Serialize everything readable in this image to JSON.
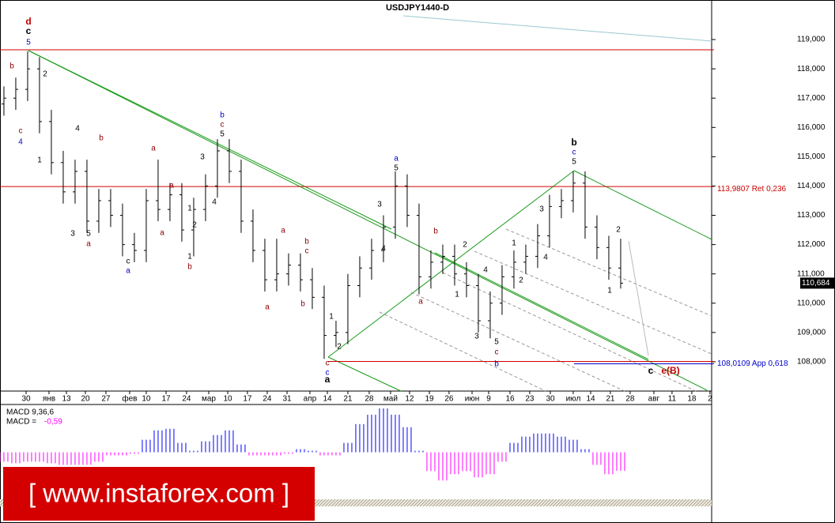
{
  "chart_data": {
    "type": "ohlc",
    "title": "USDJPY1440-D",
    "open": [
      116.8,
      117.0,
      117.3,
      118.0,
      116.2,
      114.8,
      113.8,
      114.5,
      112.8,
      113.5,
      113.0,
      112.0,
      111.8,
      113.5,
      113.2,
      113.7,
      112.5,
      113.2,
      114.0,
      115.2,
      114.5,
      112.8,
      111.8,
      110.8,
      111.0,
      111.3,
      110.8,
      110.2,
      108.9,
      109.0,
      110.6,
      111.2,
      111.8,
      112.6,
      114.0,
      113.0,
      110.9,
      111.4,
      111.6,
      111.0,
      110.6,
      109.4,
      110.0,
      110.9,
      111.4,
      111.6,
      112.3,
      113.3,
      113.5,
      114.1,
      112.6,
      111.9,
      111.2
    ],
    "high": [
      117.4,
      117.7,
      118.6,
      118.4,
      116.6,
      115.2,
      114.9,
      114.9,
      113.9,
      113.9,
      113.4,
      112.4,
      113.9,
      114.9,
      114.1,
      114.1,
      113.6,
      114.4,
      115.6,
      115.6,
      114.9,
      113.2,
      112.2,
      112.2,
      111.7,
      111.7,
      111.2,
      110.6,
      109.4,
      111.0,
      111.6,
      112.2,
      113.0,
      114.5,
      114.4,
      113.4,
      111.8,
      112.0,
      112.0,
      111.4,
      111.0,
      110.4,
      111.3,
      111.8,
      112.0,
      112.7,
      113.7,
      113.9,
      114.5,
      114.5,
      113.0,
      112.3,
      112.2
    ],
    "low": [
      116.4,
      116.6,
      116.9,
      115.8,
      114.4,
      113.4,
      113.4,
      112.4,
      112.4,
      112.6,
      111.6,
      111.4,
      111.4,
      112.8,
      112.8,
      112.1,
      111.6,
      112.8,
      113.6,
      114.1,
      112.4,
      111.4,
      110.4,
      110.4,
      110.6,
      110.4,
      109.8,
      108.1,
      108.5,
      108.6,
      110.2,
      110.8,
      111.4,
      112.2,
      112.6,
      110.3,
      110.5,
      111.0,
      110.6,
      110.2,
      109.0,
      108.8,
      109.6,
      110.5,
      111.0,
      111.2,
      111.9,
      112.9,
      113.1,
      112.2,
      111.5,
      110.8,
      110.5
    ],
    "close": [
      117.0,
      117.3,
      118.0,
      116.2,
      114.8,
      113.8,
      114.5,
      112.8,
      113.5,
      113.0,
      112.0,
      111.8,
      113.5,
      113.2,
      113.7,
      112.5,
      113.2,
      114.0,
      115.2,
      114.5,
      112.8,
      111.8,
      110.8,
      111.0,
      111.3,
      110.8,
      110.2,
      108.9,
      109.0,
      110.6,
      111.2,
      111.8,
      112.6,
      114.0,
      113.0,
      110.9,
      111.4,
      111.6,
      111.0,
      110.6,
      109.4,
      110.0,
      110.9,
      111.4,
      111.6,
      112.3,
      113.3,
      113.5,
      114.1,
      112.6,
      111.9,
      111.2,
      110.684
    ],
    "xlim": [
      -0.33,
      59.67
    ],
    "xticks": [
      {
        "value": 1.87,
        "label": "30"
      },
      {
        "value": 3.8,
        "label": "янв"
      },
      {
        "value": 5.27,
        "label": "13"
      },
      {
        "value": 6.87,
        "label": "20"
      },
      {
        "value": 8.6,
        "label": "27"
      },
      {
        "value": 10.6,
        "label": "фев"
      },
      {
        "value": 12,
        "label": "10"
      },
      {
        "value": 13.67,
        "label": "17"
      },
      {
        "value": 15.4,
        "label": "24"
      },
      {
        "value": 17.27,
        "label": "мар"
      },
      {
        "value": 18.87,
        "label": "10"
      },
      {
        "value": 20.53,
        "label": "17"
      },
      {
        "value": 22.2,
        "label": "24"
      },
      {
        "value": 23.87,
        "label": "31"
      },
      {
        "value": 25.8,
        "label": "апр"
      },
      {
        "value": 27.27,
        "label": "14"
      },
      {
        "value": 29,
        "label": "21"
      },
      {
        "value": 30.8,
        "label": "28"
      },
      {
        "value": 32.6,
        "label": "май"
      },
      {
        "value": 34.2,
        "label": "12"
      },
      {
        "value": 35.87,
        "label": "19"
      },
      {
        "value": 37.53,
        "label": "26"
      },
      {
        "value": 39.47,
        "label": "июн"
      },
      {
        "value": 40.87,
        "label": "9"
      },
      {
        "value": 42.67,
        "label": "16"
      },
      {
        "value": 44.33,
        "label": "23"
      },
      {
        "value": 46.07,
        "label": "30"
      },
      {
        "value": 48,
        "label": "июл"
      },
      {
        "value": 49.47,
        "label": "14"
      },
      {
        "value": 51.13,
        "label": "21"
      },
      {
        "value": 52.8,
        "label": "28"
      },
      {
        "value": 54.8,
        "label": "авг"
      },
      {
        "value": 56.33,
        "label": "11"
      },
      {
        "value": 58,
        "label": "18"
      },
      {
        "value": 59.53,
        "label": "2"
      }
    ],
    "ylim": [
      107.0,
      120.35
    ],
    "yticks": [
      {
        "value": 108,
        "label": "108,000"
      },
      {
        "value": 109,
        "label": "109,000"
      },
      {
        "value": 110,
        "label": "110,000"
      },
      {
        "value": 111,
        "label": "111,000"
      },
      {
        "value": 112,
        "label": "112,000"
      },
      {
        "value": 113,
        "label": "113,000"
      },
      {
        "value": 114,
        "label": "114,000"
      },
      {
        "value": 115,
        "label": "115,000"
      },
      {
        "value": 116,
        "label": "116,000"
      },
      {
        "value": 117,
        "label": "117,000"
      },
      {
        "value": 118,
        "label": "118,000"
      },
      {
        "value": 119,
        "label": "119,000"
      }
    ],
    "last_price": {
      "value": 110.684,
      "label": "110,684"
    },
    "levels": [
      {
        "value": 113.9807,
        "label": "113,9807 Ret 0,236",
        "color": "#cc0000"
      },
      {
        "value": 108.0109,
        "label": "108,0109 App 0,618",
        "color": "#0000cc"
      }
    ],
    "wave_labels": [
      {
        "text": "d",
        "color": "#c00000"
      },
      {
        "text": "c",
        "color": "#000000"
      },
      {
        "text": "5",
        "color": "#0000cc"
      },
      {
        "text": "b",
        "color": "#8b0000"
      },
      {
        "text": "2",
        "color": "#000000"
      },
      {
        "text": "c",
        "color": "#8b0000"
      },
      {
        "text": "4",
        "color": "#0000cc"
      },
      {
        "text": "1",
        "color": "#000000"
      },
      {
        "text": "4",
        "color": "#000000"
      },
      {
        "text": "b",
        "color": "#8b0000"
      },
      {
        "text": "a",
        "color": "#8b0000"
      },
      {
        "text": "3",
        "color": "#000000"
      },
      {
        "text": "5",
        "color": "#000000"
      },
      {
        "text": "a",
        "color": "#8b0000"
      },
      {
        "text": "a",
        "color": "#8b0000"
      },
      {
        "text": "c",
        "color": "#000000"
      },
      {
        "text": "a",
        "color": "#0000cc"
      },
      {
        "text": "1",
        "color": "#000000"
      },
      {
        "text": "2",
        "color": "#000000"
      },
      {
        "text": "1",
        "color": "#000000"
      },
      {
        "text": "b",
        "color": "#8b0000"
      },
      {
        "text": "b",
        "color": "#0000cc"
      },
      {
        "text": "c",
        "color": "#8b0000"
      },
      {
        "text": "5",
        "color": "#000000"
      },
      {
        "text": "3",
        "color": "#000000"
      },
      {
        "text": "4",
        "color": "#000000"
      },
      {
        "text": "a",
        "color": "#8b0000"
      },
      {
        "text": "a",
        "color": "#8b0000"
      },
      {
        "text": "b",
        "color": "#8b0000"
      },
      {
        "text": "c",
        "color": "#8b0000"
      },
      {
        "text": "a",
        "color": "#8b0000"
      },
      {
        "text": "b",
        "color": "#8b0000"
      },
      {
        "text": "1",
        "color": "#000000"
      },
      {
        "text": "2",
        "color": "#000000"
      },
      {
        "text": "c",
        "color": "#8b0000"
      },
      {
        "text": "c",
        "color": "#0000cc"
      },
      {
        "text": "a",
        "color": "#000000"
      },
      {
        "text": "a",
        "color": "#0000cc"
      },
      {
        "text": "5",
        "color": "#000000"
      },
      {
        "text": "3",
        "color": "#000000"
      },
      {
        "text": "4",
        "color": "#000000"
      },
      {
        "text": "b",
        "color": "#8b0000"
      },
      {
        "text": "a",
        "color": "#8b0000"
      },
      {
        "text": "2",
        "color": "#000000"
      },
      {
        "text": "1",
        "color": "#000000"
      },
      {
        "text": "4",
        "color": "#000000"
      },
      {
        "text": "3",
        "color": "#000000"
      },
      {
        "text": "5",
        "color": "#000000"
      },
      {
        "text": "c",
        "color": "#8b0000"
      },
      {
        "text": "b",
        "color": "#0000cc"
      },
      {
        "text": "1",
        "color": "#000000"
      },
      {
        "text": "2",
        "color": "#000000"
      },
      {
        "text": "3",
        "color": "#000000"
      },
      {
        "text": "4",
        "color": "#000000"
      },
      {
        "text": "b",
        "color": "#000000"
      },
      {
        "text": "c",
        "color": "#0000cc"
      },
      {
        "text": "5",
        "color": "#000000"
      },
      {
        "text": "2",
        "color": "#000000"
      },
      {
        "text": "1",
        "color": "#000000"
      },
      {
        "text": "c",
        "color": "#000000"
      },
      {
        "text": "e(B)",
        "color": "#c00000"
      }
    ],
    "macd": {
      "label": "MACD 9,36,6",
      "value_prefix": "MACD =",
      "value_label": "-0,59",
      "ylim": [
        -1.5,
        1.5
      ],
      "positive_color": "#0000ff",
      "negative_color": "#ff00ff",
      "values": [
        -0.3,
        -0.35,
        -0.3,
        -0.3,
        -0.35,
        -0.4,
        -0.4,
        -0.4,
        -0.3,
        -0.1,
        -0.1,
        -0.05,
        0.4,
        0.7,
        0.75,
        0.3,
        0.05,
        0.35,
        0.55,
        0.7,
        0.25,
        -0.1,
        -0.1,
        -0.1,
        -0.05,
        0.1,
        0.05,
        -0.1,
        -0.1,
        0.3,
        0.9,
        1.2,
        1.4,
        1.2,
        0.8,
        0.05,
        -0.6,
        -0.9,
        -0.7,
        -0.6,
        -0.8,
        -0.7,
        -0.3,
        0.3,
        0.5,
        0.6,
        0.6,
        0.5,
        0.4,
        0.1,
        -0.4,
        -0.7,
        -0.59
      ]
    },
    "watermark": "[ www.instaforex.com ]"
  }
}
